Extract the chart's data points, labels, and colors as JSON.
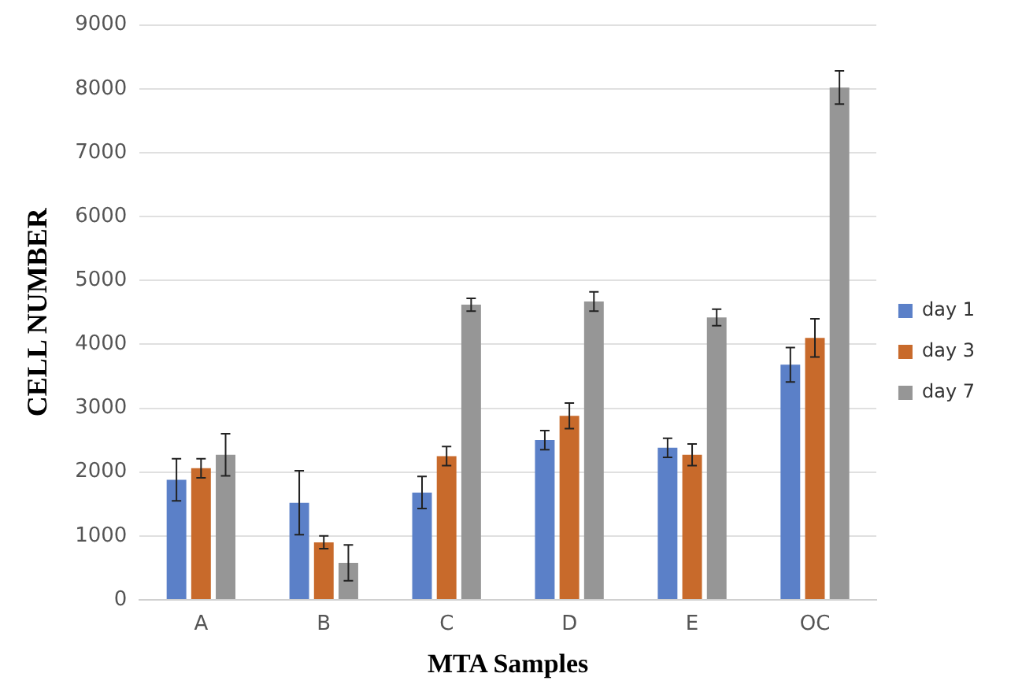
{
  "chart_data": {
    "type": "bar",
    "xlabel": "MTA Samples",
    "ylabel": "CELL NUMBER",
    "categories": [
      "A",
      "B",
      "C",
      "D",
      "E",
      "OC"
    ],
    "series": [
      {
        "name": "day 1",
        "color": "#5b80c8",
        "values": [
          1880,
          1520,
          1680,
          2500,
          2380,
          3680
        ],
        "errors": [
          330,
          500,
          250,
          150,
          150,
          270
        ]
      },
      {
        "name": "day 3",
        "color": "#c86a2b",
        "values": [
          2060,
          900,
          2250,
          2880,
          2270,
          4100
        ],
        "errors": [
          150,
          100,
          150,
          200,
          170,
          300
        ]
      },
      {
        "name": "day 7",
        "color": "#969696",
        "values": [
          2270,
          580,
          4620,
          4670,
          4420,
          8020
        ],
        "errors": [
          330,
          280,
          100,
          150,
          130,
          260
        ]
      }
    ],
    "ylim": [
      0,
      9000
    ],
    "yticks": [
      0,
      1000,
      2000,
      3000,
      4000,
      5000,
      6000,
      7000,
      8000,
      9000
    ],
    "grid": "y",
    "legend": "right"
  }
}
